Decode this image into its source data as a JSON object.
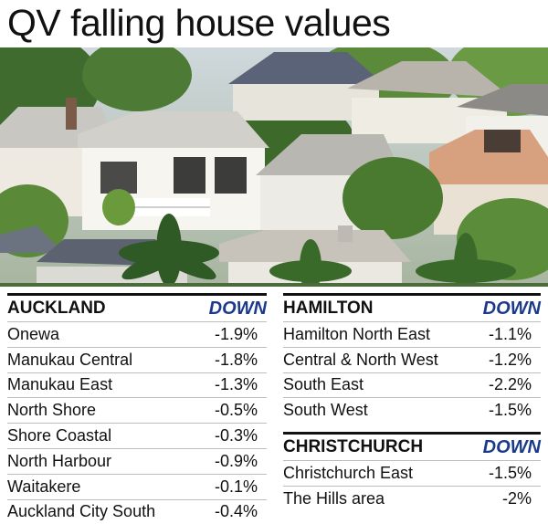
{
  "title": "QV falling house values",
  "sections": {
    "auckland": {
      "name": "AUCKLAND",
      "direction": "DOWN",
      "rows": [
        {
          "area": "Onewa",
          "change": "-1.9%"
        },
        {
          "area": "Manukau Central",
          "change": "-1.8%"
        },
        {
          "area": "Manukau East",
          "change": "-1.3%"
        },
        {
          "area": "North Shore",
          "change": "-0.5%"
        },
        {
          "area": "Shore Coastal",
          "change": "-0.3%"
        },
        {
          "area": "North Harbour",
          "change": "-0.9%"
        },
        {
          "area": "Waitakere",
          "change": "-0.1%"
        },
        {
          "area": "Auckland City South",
          "change": "-0.4%"
        }
      ]
    },
    "hamilton": {
      "name": "HAMILTON",
      "direction": "DOWN",
      "rows": [
        {
          "area": "Hamilton North East",
          "change": "-1.1%"
        },
        {
          "area": "Central & North West",
          "change": "-1.2%"
        },
        {
          "area": "South East",
          "change": "-2.2%"
        },
        {
          "area": "South West",
          "change": "-1.5%"
        }
      ]
    },
    "christchurch": {
      "name": "CHRISTCHURCH",
      "direction": "DOWN",
      "rows": [
        {
          "area": "Christchurch East",
          "change": "-1.5%"
        },
        {
          "area": "The Hills area",
          "change": "-2%"
        }
      ]
    }
  },
  "colors": {
    "down_accent": "#1b3b8a",
    "rule": "#111111",
    "divider": "#bdbdbd"
  }
}
